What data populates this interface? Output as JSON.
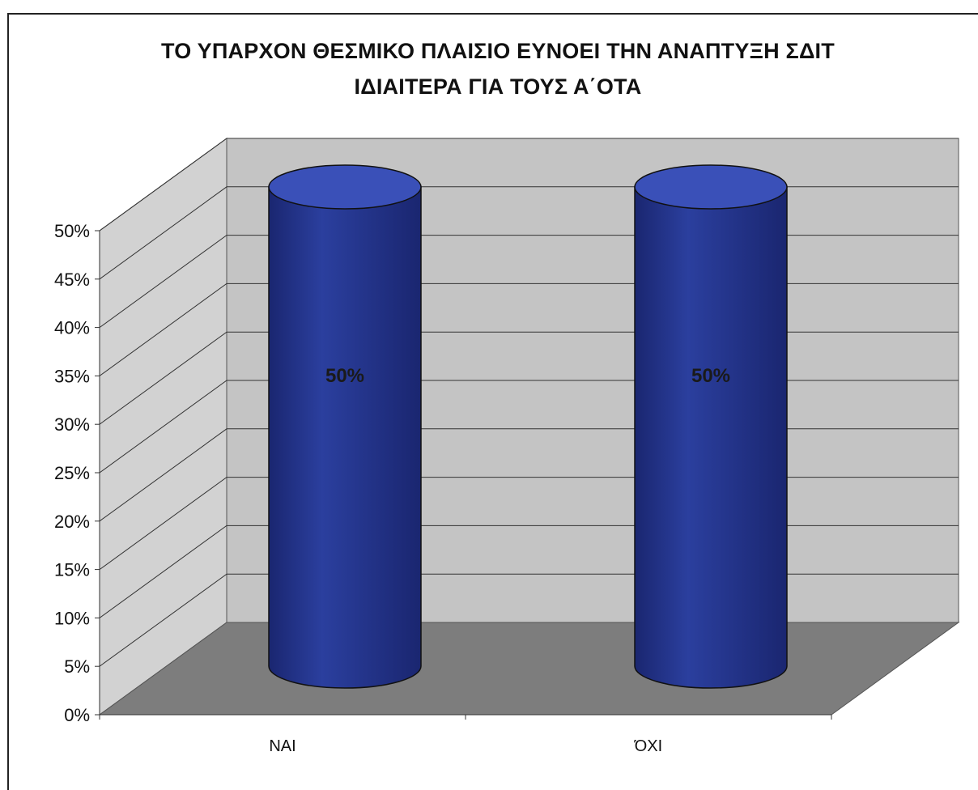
{
  "chart_data": {
    "type": "bar",
    "style": "3d-cylinder",
    "title_line1": "ΤΟ ΥΠΑΡΧΟΝ ΘΕΣΜΙΚΟ ΠΛΑΙΣΙΟ ΕΥΝΟΕΙ ΤΗΝ ΑΝΑΠΤΥΞΗ ΣΔΙΤ",
    "title_line2": "ΙΔΙΑΙΤΕΡΑ ΓΙΑ ΤΟΥΣ Α΄ΟΤΑ",
    "categories": [
      "ΝΑΙ",
      "ΌΧΙ"
    ],
    "values": [
      50,
      50
    ],
    "data_labels": [
      "50%",
      "50%"
    ],
    "ylim": [
      0,
      50
    ],
    "y_ticks": [
      "0%",
      "5%",
      "10%",
      "15%",
      "20%",
      "25%",
      "30%",
      "35%",
      "40%",
      "45%",
      "50%"
    ],
    "xlabel": "",
    "ylabel": "",
    "grid": true,
    "legend": "none",
    "colors": {
      "bar": "#2b3f9e",
      "bar_dark": "#1a2670",
      "bar_top": "#3a50b8",
      "wall": "#c4c4c4",
      "side_wall": "#d2d2d2",
      "floor": "#7d7d7d",
      "grid": "#333333"
    }
  }
}
